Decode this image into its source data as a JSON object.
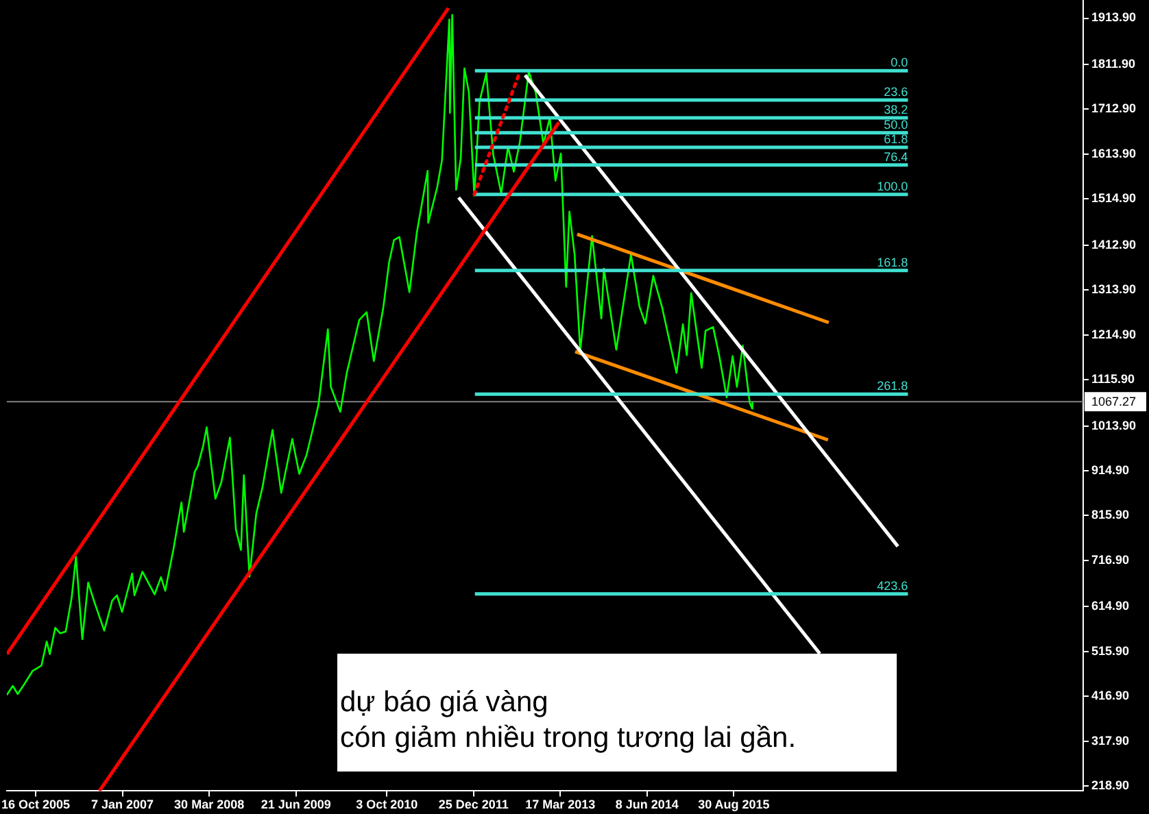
{
  "chart_data": {
    "type": "line",
    "marker": "none",
    "xlim": [
      "2005-05-20",
      "2020-08-07"
    ],
    "xticks": [
      {
        "value": "2005-10-16",
        "label": "16 Oct 2005"
      },
      {
        "value": "2007-01-07",
        "label": "7 Jan 2007"
      },
      {
        "value": "2008-03-30",
        "label": "30 Mar 2008"
      },
      {
        "value": "2009-06-21",
        "label": "21 Jun 2009"
      },
      {
        "value": "2010-10-03",
        "label": "3 Oct 2010"
      },
      {
        "value": "2011-12-25",
        "label": "25 Dec 2011"
      },
      {
        "value": "2013-03-17",
        "label": "17 Mar 2013"
      },
      {
        "value": "2014-06-08",
        "label": "8 Jun 2014"
      },
      {
        "value": "2015-08-30",
        "label": "30 Aug 2015"
      }
    ],
    "ylim": [
      208,
      1954
    ],
    "yticks": [
      {
        "value": 1913.9,
        "label": "1913.90"
      },
      {
        "value": 1811.9,
        "label": "1811.90"
      },
      {
        "value": 1712.9,
        "label": "1712.90"
      },
      {
        "value": 1613.9,
        "label": "1613.90"
      },
      {
        "value": 1514.9,
        "label": "1514.90"
      },
      {
        "value": 1412.9,
        "label": "1412.90"
      },
      {
        "value": 1313.9,
        "label": "1313.90"
      },
      {
        "value": 1214.9,
        "label": "1214.90"
      },
      {
        "value": 1115.9,
        "label": "1115.90"
      },
      {
        "value": 1013.9,
        "label": "1013.90"
      },
      {
        "value": 914.9,
        "label": "914.90"
      },
      {
        "value": 815.9,
        "label": "815.90"
      },
      {
        "value": 716.9,
        "label": "716.90"
      },
      {
        "value": 614.9,
        "label": "614.90"
      },
      {
        "value": 515.9,
        "label": "515.90"
      },
      {
        "value": 416.9,
        "label": "416.90"
      },
      {
        "value": 317.9,
        "label": "317.90"
      },
      {
        "value": 218.9,
        "label": "218.90"
      }
    ],
    "ref_lines": [
      {
        "axis": "y",
        "value": 1067.27,
        "label": "1067.27",
        "color": "#808080"
      }
    ],
    "series": [
      {
        "color": "#ff0000",
        "x": [
          "2005-05-20",
          "2011-08-17"
        ],
        "values": [
          510,
          1936
        ]
      },
      {
        "color": "#ff0000",
        "x": [
          "2006-09-10",
          "2013-03-10"
        ],
        "values": [
          208,
          1684
        ]
      },
      {
        "color": "#ff0000",
        "line_style": "dotted",
        "x": [
          "2011-12-29",
          "2012-08-20"
        ],
        "values": [
          1525,
          1795
        ]
      },
      {
        "name": "0.0",
        "color": "#40e0d0",
        "x": [
          "2012-01-01",
          "2018-02-14"
        ],
        "values": [
          1798,
          1798
        ]
      },
      {
        "name": "23.6",
        "color": "#40e0d0",
        "x": [
          "2012-01-01",
          "2018-02-14"
        ],
        "values": [
          1733,
          1733
        ]
      },
      {
        "name": "38.2",
        "color": "#40e0d0",
        "x": [
          "2012-01-01",
          "2018-02-14"
        ],
        "values": [
          1694,
          1694
        ]
      },
      {
        "name": "50.0",
        "color": "#40e0d0",
        "x": [
          "2012-01-01",
          "2018-02-14"
        ],
        "values": [
          1661,
          1661
        ]
      },
      {
        "name": "61.8",
        "color": "#40e0d0",
        "x": [
          "2012-01-01",
          "2018-02-14"
        ],
        "values": [
          1629,
          1629
        ]
      },
      {
        "name": "76.4",
        "color": "#40e0d0",
        "x": [
          "2012-01-01",
          "2018-02-14"
        ],
        "values": [
          1590,
          1590
        ]
      },
      {
        "name": "100.0",
        "color": "#40e0d0",
        "x": [
          "2012-01-01",
          "2018-02-14"
        ],
        "values": [
          1525,
          1525
        ]
      },
      {
        "name": "161.8",
        "color": "#40e0d0",
        "x": [
          "2012-01-01",
          "2018-02-14"
        ],
        "values": [
          1357,
          1357
        ]
      },
      {
        "name": "261.8",
        "color": "#40e0d0",
        "x": [
          "2012-01-01",
          "2018-02-14"
        ],
        "values": [
          1084,
          1084
        ]
      },
      {
        "name": "423.6",
        "color": "#40e0d0",
        "x": [
          "2012-01-01",
          "2018-02-14"
        ],
        "values": [
          643,
          643
        ]
      },
      {
        "color": "#ffffff",
        "x": [
          "2012-09-16",
          "2017-12-24"
        ],
        "values": [
          1788,
          748
        ]
      },
      {
        "color": "#ffffff",
        "x": [
          "2011-10-09",
          "2016-11-16"
        ],
        "values": [
          1518,
          511
        ]
      },
      {
        "color": "#ff8c00",
        "x": [
          "2013-06-12",
          "2017-01-01"
        ],
        "values": [
          1437,
          1242
        ]
      },
      {
        "color": "#ff8c00",
        "x": [
          "2013-06-02",
          "2016-12-28"
        ],
        "values": [
          1178,
          983
        ]
      },
      {
        "color": "#00ff00",
        "x": [
          "2005-05-20",
          "2005-06-20",
          "2005-07-15",
          "2005-08-20",
          "2005-09-30",
          "2005-10-20",
          "2005-11-15",
          "2005-12-12",
          "2005-12-28",
          "2006-01-25",
          "2006-02-20",
          "2006-03-20",
          "2006-04-20",
          "2006-05-12",
          "2006-06-14",
          "2006-07-14",
          "2006-08-15",
          "2006-10-05",
          "2006-11-15",
          "2006-12-10",
          "2007-01-05",
          "2007-02-26",
          "2007-03-10",
          "2007-04-20",
          "2007-06-22",
          "2007-07-25",
          "2007-08-16",
          "2007-09-28",
          "2007-11-08",
          "2007-11-20",
          "2008-01-15",
          "2008-01-31",
          "2008-02-28",
          "2008-03-17",
          "2008-05-01",
          "2008-06-01",
          "2008-07-15",
          "2008-08-15",
          "2008-09-10",
          "2008-09-25",
          "2008-10-24",
          "2008-11-28",
          "2008-12-31",
          "2009-02-20",
          "2009-04-06",
          "2009-06-02",
          "2009-07-08",
          "2009-08-15",
          "2009-09-15",
          "2009-10-15",
          "2009-12-03",
          "2009-12-18",
          "2010-02-05",
          "2010-03-10",
          "2010-05-14",
          "2010-06-21",
          "2010-07-28",
          "2010-09-15",
          "2010-10-15",
          "2010-11-09",
          "2010-12-07",
          "2011-01-28",
          "2011-03-07",
          "2011-05-02",
          "2011-05-05",
          "2011-06-20",
          "2011-07-15",
          "2011-08-22",
          "2011-08-25",
          "2011-09-06",
          "2011-09-26",
          "2011-10-20",
          "2011-11-08",
          "2011-12-01",
          "2011-12-29",
          "2012-01-25",
          "2012-02-29",
          "2012-04-05",
          "2012-05-16",
          "2012-06-20",
          "2012-07-20",
          "2012-08-20",
          "2012-10-05",
          "2012-11-10",
          "2012-12-20",
          "2013-01-22",
          "2013-02-20",
          "2013-03-20",
          "2013-04-16",
          "2013-05-03",
          "2013-05-30",
          "2013-06-28",
          "2013-08-28",
          "2013-10-15",
          "2013-10-28",
          "2013-12-31",
          "2014-03-17",
          "2014-04-30",
          "2014-05-30",
          "2014-07-10",
          "2014-08-25",
          "2014-09-30",
          "2014-11-07",
          "2014-12-10",
          "2014-12-30",
          "2015-01-22",
          "2015-03-17",
          "2015-04-06",
          "2015-05-15",
          "2015-06-15",
          "2015-07-24",
          "2015-08-24",
          "2015-09-15",
          "2015-10-15",
          "2015-11-20",
          "2015-12-03",
          "2015-12-04"
        ],
        "values": [
          420,
          440,
          422,
          445,
          473,
          478,
          485,
          538,
          510,
          568,
          556,
          560,
          635,
          725,
          543,
          668,
          625,
          562,
          628,
          640,
          603,
          688,
          640,
          692,
          642,
          680,
          650,
          743,
          845,
          780,
          912,
          925,
          970,
          1011,
          853,
          890,
          988,
          785,
          740,
          905,
          681,
          820,
          880,
          1005,
          866,
          985,
          908,
          950,
          1005,
          1060,
          1227,
          1100,
          1045,
          1130,
          1248,
          1265,
          1157,
          1275,
          1375,
          1424,
          1431,
          1309,
          1440,
          1577,
          1462,
          1540,
          1600,
          1911,
          1705,
          1921,
          1535,
          1605,
          1803,
          1750,
          1522,
          1730,
          1792,
          1612,
          1527,
          1630,
          1575,
          1640,
          1796,
          1750,
          1636,
          1695,
          1555,
          1615,
          1321,
          1487,
          1392,
          1180,
          1433,
          1251,
          1361,
          1182,
          1392,
          1277,
          1240,
          1345,
          1275,
          1205,
          1131,
          1238,
          1170,
          1307,
          1142,
          1224,
          1232,
          1170,
          1077,
          1168,
          1100,
          1191,
          1065,
          1052,
          1067
        ]
      }
    ],
    "annotations": [
      "dự báo giá vàng\ncón giảm nhiều trong tương lai gần."
    ]
  }
}
